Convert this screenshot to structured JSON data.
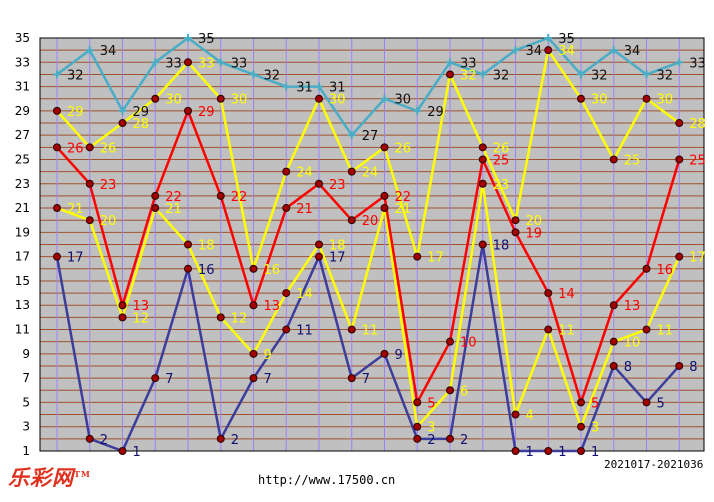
{
  "chart_data": {
    "type": "line",
    "title": "",
    "xlabel": "",
    "ylabel": "",
    "ylim": [
      1,
      35
    ],
    "y_ticks": [
      1,
      3,
      5,
      7,
      9,
      11,
      13,
      15,
      17,
      19,
      21,
      23,
      25,
      27,
      29,
      31,
      33,
      35
    ],
    "grid": true,
    "x_count": 20,
    "series": [
      {
        "color": "#3d3d9b",
        "label_color": "#101070",
        "values": [
          17,
          2,
          1,
          7,
          16,
          2,
          7,
          11,
          17,
          7,
          9,
          2,
          2,
          18,
          1,
          1,
          1,
          8,
          5,
          8
        ]
      },
      {
        "color": "#ffff00",
        "label_color": "#ffff00",
        "values": [
          21,
          20,
          12,
          21,
          18,
          12,
          9,
          14,
          18,
          11,
          21,
          3,
          6,
          23,
          4,
          11,
          3,
          10,
          11,
          17
        ]
      },
      {
        "color": "#ff0000",
        "label_color": "#ff0000",
        "values": [
          26,
          23,
          13,
          22,
          29,
          22,
          13,
          21,
          23,
          20,
          22,
          5,
          10,
          25,
          19,
          14,
          5,
          13,
          16,
          25
        ]
      },
      {
        "color": "#ffff00",
        "label_color": "#ffff00",
        "values": [
          29,
          26,
          28,
          30,
          33,
          30,
          16,
          24,
          30,
          24,
          26,
          17,
          32,
          26,
          20,
          34,
          30,
          25,
          30,
          28
        ]
      },
      {
        "color": "#4bacc6",
        "label_color": "#101010",
        "values": [
          32,
          34,
          29,
          33,
          35,
          33,
          32,
          31,
          31,
          27,
          30,
          29,
          33,
          32,
          34,
          35,
          32,
          34,
          32,
          33
        ]
      }
    ]
  },
  "colors": {
    "plot_bg": "#c0c0c0",
    "grid_line": "#a0522d",
    "vertical_grid": "#9b82ff",
    "marker_fill": "#a00000",
    "marker_stroke": "#2a0000"
  },
  "footer": {
    "logo_text": "乐彩网",
    "logo_mark": "TM",
    "url": "http://www.17500.cn",
    "period": "2021017-2021036"
  }
}
